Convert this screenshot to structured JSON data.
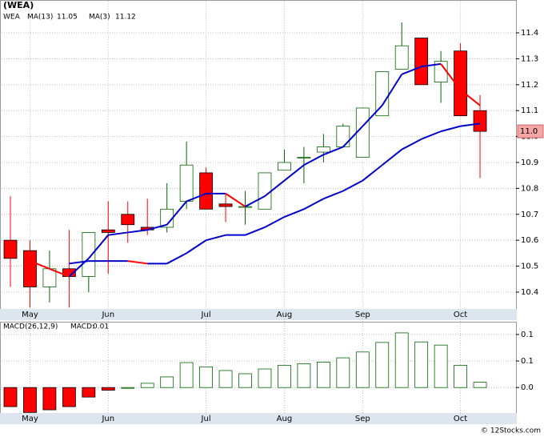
{
  "chart_data": [
    {
      "type": "candlestick",
      "title": "(WEA)",
      "categories": [
        null,
        "May",
        null,
        null,
        null,
        "Jun",
        null,
        null,
        null,
        null,
        "Jul",
        null,
        null,
        null,
        "Aug",
        null,
        null,
        null,
        "Sep",
        null,
        null,
        null,
        null,
        "Oct",
        null
      ],
      "candles": {
        "name": "WEA",
        "up_color": "#006400",
        "down_color": "#ff0000",
        "open": [
          10.6,
          10.56,
          10.42,
          10.49,
          10.46,
          10.64,
          10.7,
          10.65,
          10.65,
          10.75,
          10.86,
          10.74,
          10.73,
          10.72,
          10.87,
          10.92,
          10.94,
          10.96,
          10.92,
          11.08,
          11.26,
          11.38,
          11.21,
          11.33,
          11.1
        ],
        "high": [
          10.77,
          10.6,
          10.56,
          10.64,
          10.63,
          10.75,
          10.75,
          10.76,
          10.82,
          10.98,
          10.88,
          10.78,
          10.79,
          10.86,
          10.95,
          10.96,
          11.01,
          11.05,
          11.11,
          11.25,
          11.44,
          11.38,
          11.33,
          11.36,
          11.16
        ],
        "low": [
          10.42,
          10.34,
          10.36,
          10.34,
          10.4,
          10.47,
          10.59,
          10.62,
          10.63,
          10.72,
          10.72,
          10.67,
          10.66,
          10.72,
          10.87,
          10.82,
          10.9,
          10.96,
          10.92,
          11.08,
          11.26,
          11.2,
          11.13,
          11.08,
          10.84
        ],
        "close": [
          10.53,
          10.42,
          10.49,
          10.46,
          10.63,
          10.63,
          10.66,
          10.64,
          10.72,
          10.89,
          10.72,
          10.73,
          10.73,
          10.86,
          10.9,
          10.92,
          10.96,
          11.04,
          11.11,
          11.25,
          11.35,
          11.2,
          11.29,
          11.08,
          11.02
        ]
      },
      "series": [
        {
          "name": "MA(13)",
          "color": "#0000cc",
          "down_color": "#ff0000",
          "values": [
            null,
            null,
            null,
            10.51,
            10.52,
            10.52,
            10.52,
            10.51,
            10.51,
            10.55,
            10.6,
            10.62,
            10.62,
            10.65,
            10.69,
            10.72,
            10.76,
            10.79,
            10.83,
            10.89,
            10.95,
            10.99,
            11.02,
            11.04,
            11.05
          ]
        },
        {
          "name": "MA(3)",
          "color": "#0000cc",
          "down_color": "#ff0000",
          "values": [
            null,
            10.52,
            10.49,
            10.46,
            10.53,
            10.62,
            10.63,
            10.64,
            10.66,
            10.75,
            10.78,
            10.78,
            10.73,
            10.77,
            10.83,
            10.89,
            10.93,
            10.96,
            11.04,
            11.12,
            11.24,
            11.27,
            11.28,
            11.18,
            11.12
          ]
        }
      ],
      "price_tag": {
        "value": 11.02,
        "label": "11.0"
      },
      "ylim": [
        10.335,
        11.485
      ],
      "yticks": [
        10.4,
        10.5,
        10.6,
        10.7,
        10.8,
        10.9,
        {
          "value": 11.0,
          "label": "11.0"
        },
        11.1,
        11.2,
        11.3,
        11.4
      ],
      "grid": true
    },
    {
      "type": "bar",
      "title": "MACD(26,12,9)",
      "categories": [
        null,
        "May",
        null,
        null,
        null,
        "Jun",
        null,
        null,
        null,
        null,
        "Jul",
        null,
        null,
        null,
        "Aug",
        null,
        null,
        null,
        "Sep",
        null,
        null,
        null,
        null,
        "Oct",
        null
      ],
      "series": [
        {
          "name": "MACD:",
          "color": "#006400",
          "down_color": "#ff0000",
          "values": [
            -0.036,
            -0.047,
            -0.042,
            -0.036,
            -0.018,
            -0.005,
            0.0,
            0.008,
            0.02,
            0.047,
            0.039,
            0.032,
            0.026,
            0.035,
            0.042,
            0.045,
            0.048,
            0.056,
            0.067,
            0.085,
            0.103,
            0.086,
            0.08,
            0.042,
            0.01
          ]
        }
      ],
      "ylim": [
        -0.048,
        0.121
      ],
      "yticks": [
        {
          "value": 0.0,
          "label": "0.0"
        },
        {
          "value": 0.05,
          "label": "0.1"
        },
        0.1
      ],
      "grid": true
    },
    {
      "type": "text",
      "title": "© 12Stocks.com"
    }
  ]
}
